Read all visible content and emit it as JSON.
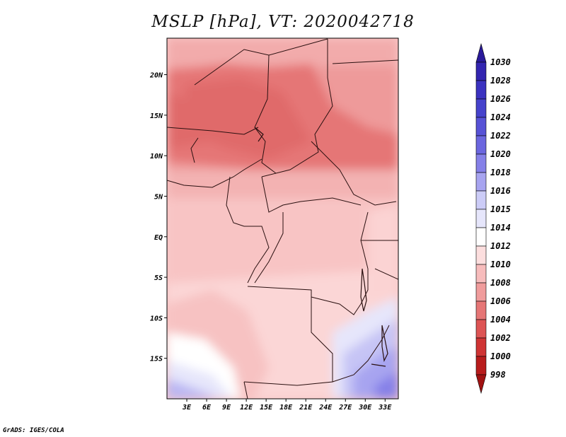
{
  "title": "MSLP [hPa], VT: 2020042718",
  "credit": "GrADS: IGES/COLA",
  "x_axis": {
    "labels": [
      "3E",
      "6E",
      "9E",
      "12E",
      "15E",
      "18E",
      "21E",
      "24E",
      "27E",
      "30E",
      "33E"
    ],
    "values": [
      3,
      6,
      9,
      12,
      15,
      18,
      21,
      24,
      27,
      30,
      33
    ],
    "range": [
      0,
      35
    ]
  },
  "y_axis": {
    "labels": [
      "20N",
      "15N",
      "10N",
      "5N",
      "EQ",
      "5S",
      "10S",
      "15S"
    ],
    "values": [
      20,
      15,
      10,
      5,
      0,
      -5,
      -10,
      -15
    ],
    "range": [
      -20,
      24.5
    ]
  },
  "colorbar": {
    "labels": [
      "1030",
      "1028",
      "1026",
      "1024",
      "1022",
      "1020",
      "1018",
      "1016",
      "1015",
      "1014",
      "1012",
      "1010",
      "1008",
      "1006",
      "1004",
      "1002",
      "1000",
      "998"
    ],
    "colors": [
      "#2a1a9a",
      "#3325b0",
      "#3b32c0",
      "#4642cc",
      "#5752d6",
      "#6b66df",
      "#8580e8",
      "#a7a4f0",
      "#ccccf7",
      "#e6e6fb",
      "#ffffff",
      "#fcdede",
      "#f7bcbc",
      "#f09c9c",
      "#e67676",
      "#dd5454",
      "#cf3434",
      "#b81c1c",
      "#a11212"
    ]
  }
}
